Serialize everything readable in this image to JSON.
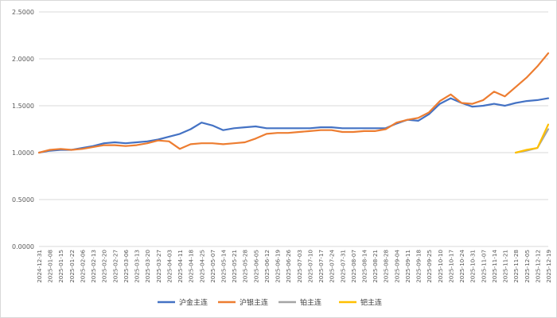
{
  "chart_data": {
    "type": "line",
    "title": "",
    "xlabel": "",
    "ylabel": "",
    "ylim": [
      0,
      2.5
    ],
    "yticks": [
      "0.0000",
      "0.5000",
      "1.0000",
      "1.5000",
      "2.0000",
      "2.5000"
    ],
    "grid": "horizontal",
    "legend_position": "bottom",
    "x_tick_labels": [
      "2024-12-31",
      "2025-01-08",
      "2025-01-15",
      "2025-01-22",
      "2025-02-06",
      "2025-02-13",
      "2025-02-20",
      "2025-02-27",
      "2025-03-06",
      "2025-03-13",
      "2025-03-20",
      "2025-03-27",
      "2025-04-03",
      "2025-04-11",
      "2025-04-18",
      "2025-04-25",
      "2025-05-07",
      "2025-05-14",
      "2025-05-21",
      "2025-05-28",
      "2025-06-05",
      "2025-06-12",
      "2025-06-19",
      "2025-06-26",
      "2025-07-03",
      "2025-07-10",
      "2025-07-17",
      "2025-07-24",
      "2025-07-31",
      "2025-08-07",
      "2025-08-14",
      "2025-08-21",
      "2025-08-28",
      "2025-09-04",
      "2025-09-11",
      "2025-09-18",
      "2025-09-25",
      "2025-10-10",
      "2025-10-17",
      "2025-10-24",
      "2025-10-31",
      "2025-11-07",
      "2025-11-14",
      "2025-11-21",
      "2025-11-28",
      "2025-12-05",
      "2025-12-12",
      "2025-12-19"
    ],
    "series": [
      {
        "name": "沪金主连",
        "color": "#4472C4",
        "start_index": 0,
        "values": [
          1.0,
          1.02,
          1.03,
          1.03,
          1.05,
          1.07,
          1.1,
          1.11,
          1.1,
          1.11,
          1.12,
          1.14,
          1.17,
          1.2,
          1.25,
          1.32,
          1.29,
          1.24,
          1.26,
          1.27,
          1.28,
          1.26,
          1.26,
          1.26,
          1.26,
          1.26,
          1.27,
          1.27,
          1.26,
          1.26,
          1.26,
          1.26,
          1.26,
          1.31,
          1.35,
          1.34,
          1.41,
          1.52,
          1.58,
          1.53,
          1.49,
          1.5,
          1.52,
          1.5,
          1.53,
          1.55,
          1.56,
          1.58
        ]
      },
      {
        "name": "沪银主连",
        "color": "#ED7D31",
        "start_index": 0,
        "values": [
          1.0,
          1.03,
          1.04,
          1.03,
          1.04,
          1.06,
          1.08,
          1.08,
          1.07,
          1.08,
          1.1,
          1.13,
          1.12,
          1.04,
          1.09,
          1.1,
          1.1,
          1.09,
          1.1,
          1.11,
          1.15,
          1.2,
          1.21,
          1.21,
          1.22,
          1.23,
          1.24,
          1.24,
          1.22,
          1.22,
          1.23,
          1.23,
          1.25,
          1.32,
          1.35,
          1.37,
          1.43,
          1.55,
          1.62,
          1.53,
          1.52,
          1.56,
          1.65,
          1.6,
          1.7,
          1.8,
          1.92,
          2.06
        ]
      },
      {
        "name": "铂主连",
        "color": "#A5A5A5",
        "start_index": 44,
        "values": [
          1.0,
          1.02,
          1.05,
          1.25
        ]
      },
      {
        "name": "钯主连",
        "color": "#FFC000",
        "start_index": 44,
        "values": [
          1.0,
          1.03,
          1.05,
          1.3
        ]
      }
    ]
  }
}
